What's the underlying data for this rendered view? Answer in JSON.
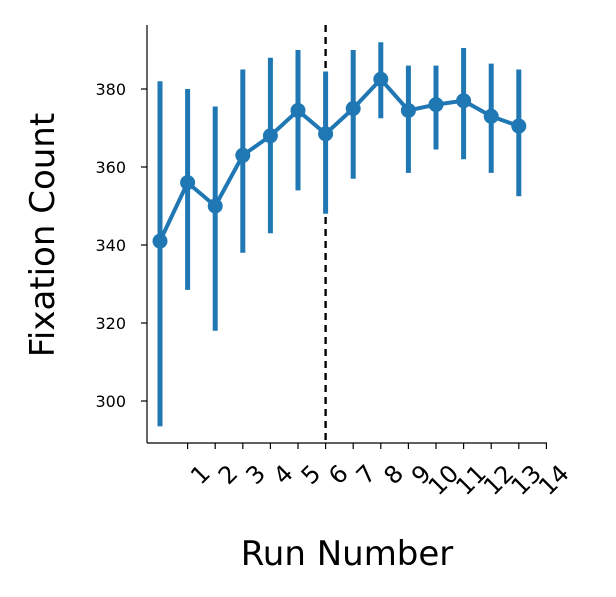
{
  "chart_data": {
    "type": "line",
    "xlabel": "Run Number",
    "ylabel": "Fixation Count",
    "x_tick_labels": [
      "1",
      "2",
      "3",
      "4",
      "5",
      "6",
      "7",
      "8",
      "9",
      "10",
      "11",
      "12",
      "13",
      "14"
    ],
    "y_ticks": [
      300,
      320,
      340,
      360,
      380
    ],
    "ylim": [
      289,
      396
    ],
    "reference_line": {
      "after_x_tick": "6",
      "style": "dashed"
    },
    "series": [
      {
        "color": "#1f77b4",
        "values": [
          341,
          356,
          350,
          363,
          368,
          374.5,
          368.5,
          375,
          382.5,
          374.5,
          376,
          377,
          373,
          370.5
        ],
        "error_low": [
          293.5,
          328.5,
          318,
          338,
          343,
          354,
          348,
          357,
          372.5,
          358.5,
          364.5,
          362,
          358.5,
          352.5
        ],
        "error_high": [
          382,
          380,
          375.5,
          385,
          388,
          390,
          384.5,
          390,
          392,
          386,
          386,
          390.5,
          386.5,
          385
        ]
      }
    ]
  }
}
